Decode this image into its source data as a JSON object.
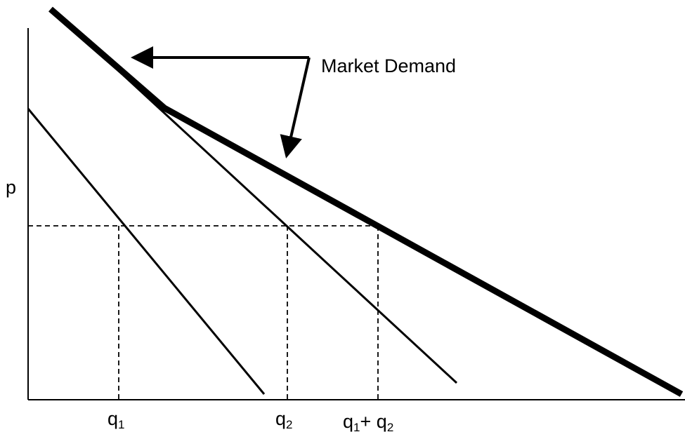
{
  "diagram": {
    "y_axis_label": "p",
    "annotation": "Market Demand",
    "x_tick_q1": {
      "base": "q",
      "sub": "1"
    },
    "x_tick_q2": {
      "base": "q",
      "sub": "2"
    },
    "x_tick_sum": {
      "base1": "q",
      "sub1": "1",
      "plus": "+ ",
      "base2": "q",
      "sub2": "2"
    },
    "line_color": "#000000",
    "background": "#ffffff"
  }
}
